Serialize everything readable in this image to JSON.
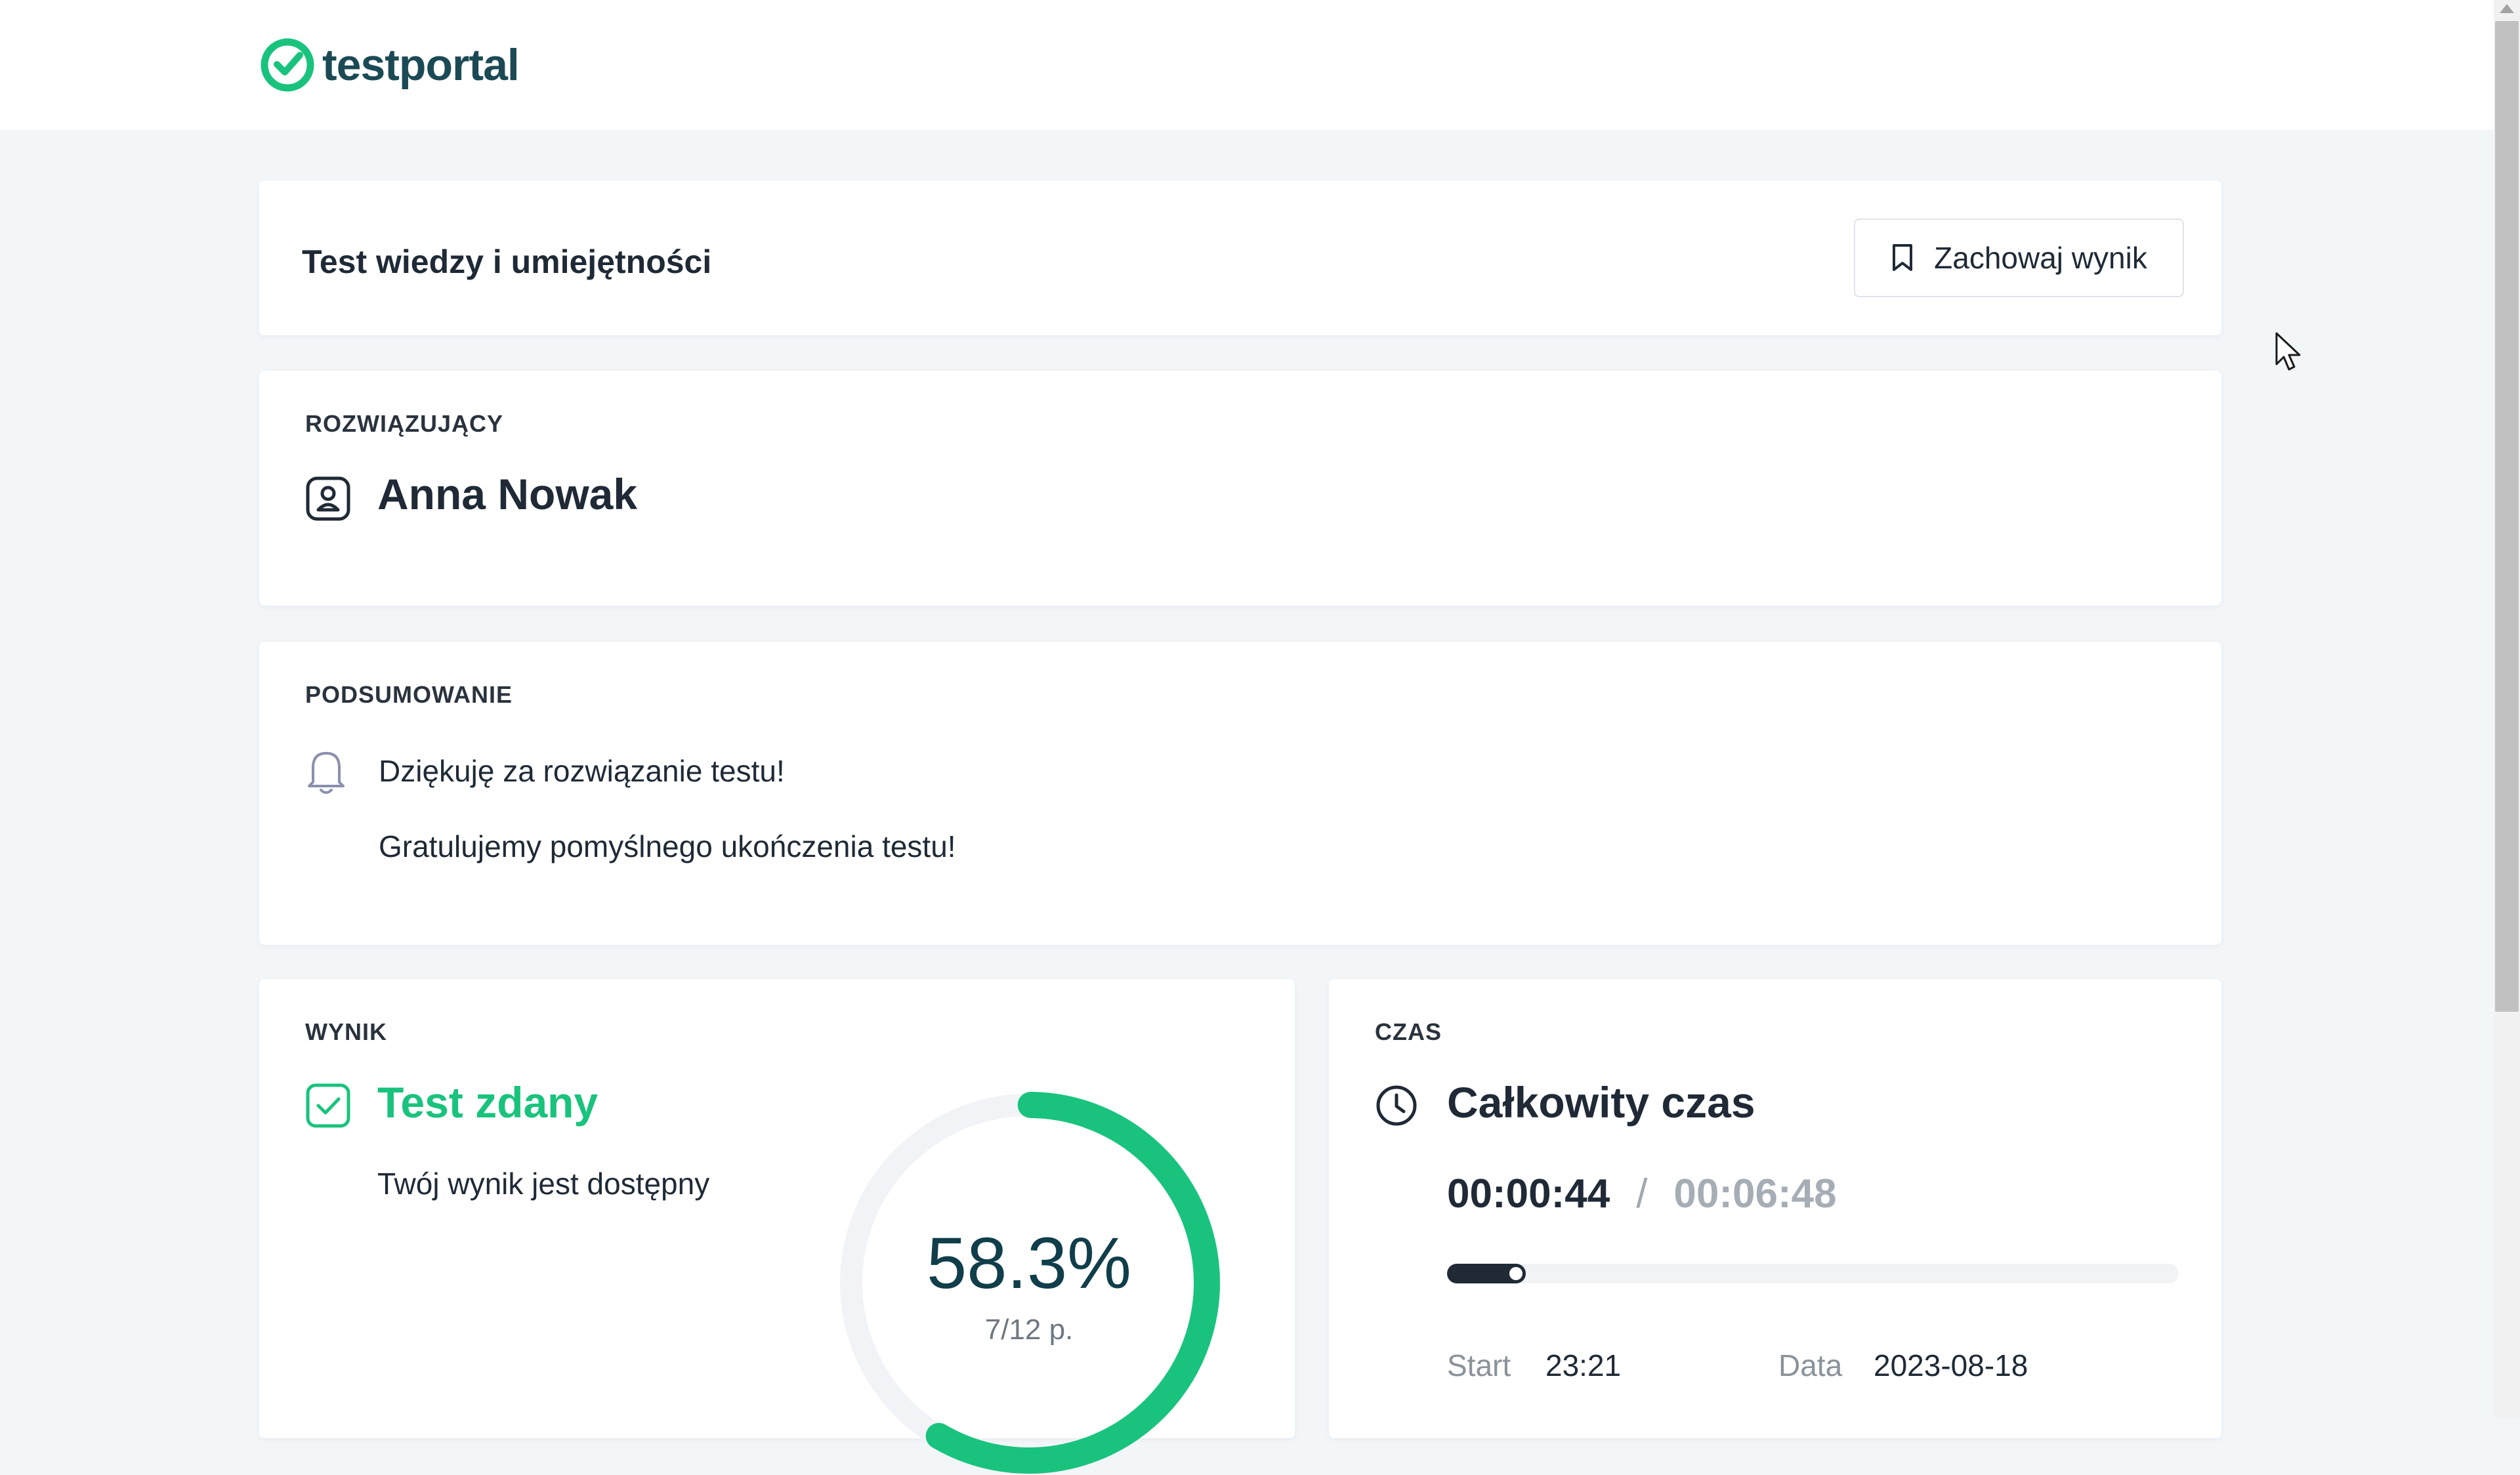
{
  "header": {
    "logo_text": "testportal",
    "logo_icon": "check-circle-icon",
    "brand_color": "#19c37d"
  },
  "test": {
    "title": "Test wiedzy i umiejętności",
    "save_button_label": "Zachowaj wynik",
    "save_button_icon": "bookmark-icon"
  },
  "solver": {
    "label": "ROZWIĄZUJĄCY",
    "name": "Anna Nowak",
    "icon": "user-badge-icon"
  },
  "summary": {
    "label": "PODSUMOWANIE",
    "icon": "bell-icon",
    "line1": "Dziękuję za rozwiązanie testu!",
    "line2": "Gratulujemy pomyślnego ukończenia testu!"
  },
  "result": {
    "label": "WYNIK",
    "icon": "check-square-icon",
    "status": "Test zdany",
    "subtitle": "Twój wynik jest dostępny",
    "percent_text": "58.3%",
    "percent_value": 58.3,
    "points_text": "7/12 p.",
    "gauge_color": "#19c37d"
  },
  "time": {
    "label": "CZAS",
    "icon": "clock-icon",
    "title": "Całkowity czas",
    "elapsed": "00:00:44",
    "separator": "/",
    "limit": "00:06:48",
    "progress_fraction": 0.108,
    "start_label": "Start",
    "start_value": "23:21",
    "date_label": "Data",
    "date_value": "2023-08-18"
  }
}
